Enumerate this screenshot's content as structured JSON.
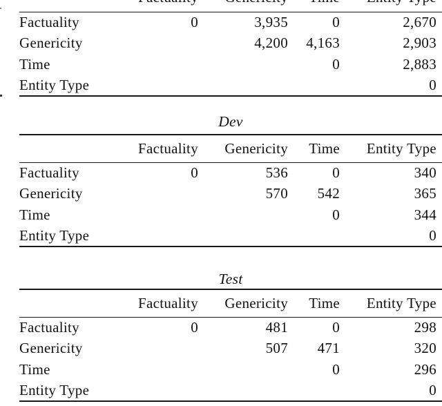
{
  "page": {
    "background_color": "#ffffff",
    "text_color": "#111111",
    "rule_color": "#1a1a1a"
  },
  "tables": [
    {
      "title": "",
      "col_headers": [
        "",
        "Factuality",
        "Genericity",
        "Time",
        "Entity Type"
      ],
      "rows": [
        [
          "Factuality",
          "0",
          "3,935",
          "0",
          "2,670"
        ],
        [
          "Genericity",
          "",
          "4,200",
          "4,163",
          "2,903"
        ],
        [
          "Time",
          "",
          "",
          "0",
          "2,883"
        ],
        [
          "Entity Type",
          "",
          "",
          "",
          "0"
        ]
      ]
    },
    {
      "title": "Dev",
      "col_headers": [
        "",
        "Factuality",
        "Genericity",
        "Time",
        "Entity Type"
      ],
      "rows": [
        [
          "Factuality",
          "0",
          "536",
          "0",
          "340"
        ],
        [
          "Genericity",
          "",
          "570",
          "542",
          "365"
        ],
        [
          "Time",
          "",
          "",
          "0",
          "344"
        ],
        [
          "Entity Type",
          "",
          "",
          "",
          "0"
        ]
      ]
    },
    {
      "title": "Test",
      "col_headers": [
        "",
        "Factuality",
        "Genericity",
        "Time",
        "Entity Type"
      ],
      "rows": [
        [
          "Factuality",
          "0",
          "481",
          "0",
          "298"
        ],
        [
          "Genericity",
          "",
          "507",
          "471",
          "320"
        ],
        [
          "Time",
          "",
          "",
          "0",
          "296"
        ],
        [
          "Entity Type",
          "",
          "",
          "",
          "0"
        ]
      ]
    }
  ]
}
